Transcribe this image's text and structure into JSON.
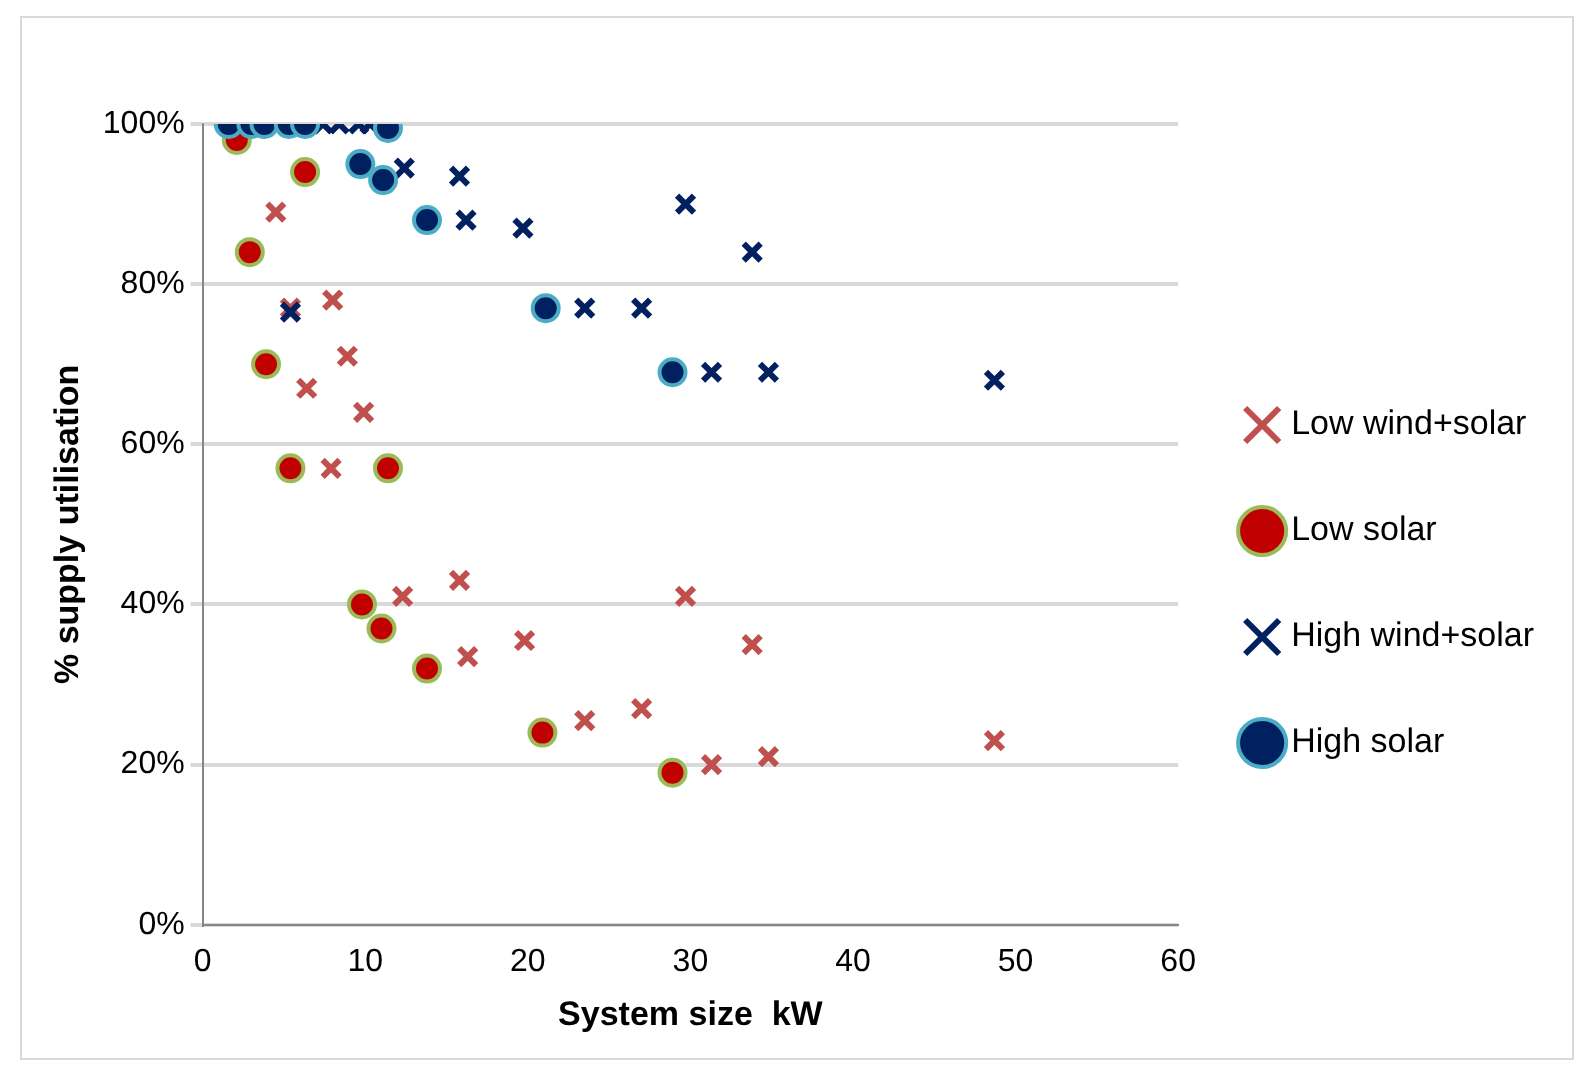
{
  "chart_data": {
    "type": "scatter",
    "xlabel": "System size  kW",
    "ylabel": "% supply utilisation",
    "xlim": [
      0,
      60
    ],
    "xticks": [
      0,
      10,
      20,
      30,
      40,
      50,
      60
    ],
    "ylim": [
      0,
      1
    ],
    "yticks": [
      {
        "value": 0,
        "label": "0%"
      },
      {
        "value": 0.2,
        "label": "20%"
      },
      {
        "value": 0.4,
        "label": "40%"
      },
      {
        "value": 0.6,
        "label": "60%"
      },
      {
        "value": 0.8,
        "label": "80%"
      },
      {
        "value": 1,
        "label": "100%"
      }
    ],
    "grid": "y",
    "legend": "right",
    "series": [
      {
        "name": "Low wind+solar",
        "color": "#c0504d",
        "marker": "cross",
        "x": [
          4.5,
          5.4,
          8.0,
          8.9,
          6.4,
          9.9,
          7.9,
          12.3,
          15.8,
          16.3,
          19.8,
          23.5,
          27.0,
          29.7,
          33.8,
          31.3,
          34.8,
          48.7
        ],
        "values": [
          0.89,
          0.77,
          0.78,
          0.71,
          0.67,
          0.64,
          0.57,
          0.41,
          0.43,
          0.335,
          0.355,
          0.255,
          0.27,
          0.41,
          0.35,
          0.2,
          0.21,
          0.23
        ]
      },
      {
        "name": "Low solar",
        "color": "#c00000",
        "marker": "circle",
        "x": [
          2.1,
          6.3,
          2.9,
          3.9,
          5.4,
          11.4,
          9.8,
          11.0,
          13.8,
          20.9,
          28.9
        ],
        "values": [
          0.98,
          0.94,
          0.84,
          0.7,
          0.57,
          0.57,
          0.4,
          0.37,
          0.32,
          0.24,
          0.19
        ]
      },
      {
        "name": "High wind+solar",
        "color": "#002060",
        "marker": "cross",
        "x": [
          7.4,
          8.4,
          9.6,
          10.3,
          12.4,
          15.8,
          16.2,
          19.7,
          5.4,
          23.5,
          27.0,
          29.7,
          33.8,
          31.3,
          34.8,
          48.7
        ],
        "values": [
          1,
          1,
          1,
          1,
          0.945,
          0.935,
          0.88,
          0.87,
          0.765,
          0.77,
          0.77,
          0.9,
          0.84,
          0.69,
          0.69,
          0.68
        ]
      },
      {
        "name": "High solar",
        "color": "#002060",
        "marker": "circle",
        "x": [
          1.6,
          3.0,
          3.8,
          5.3,
          6.3,
          11.4,
          9.7,
          11.1,
          13.8,
          21.1,
          28.9
        ],
        "values": [
          1,
          1,
          1,
          1,
          1,
          0.995,
          0.95,
          0.93,
          0.88,
          0.77,
          0.69
        ]
      }
    ]
  }
}
